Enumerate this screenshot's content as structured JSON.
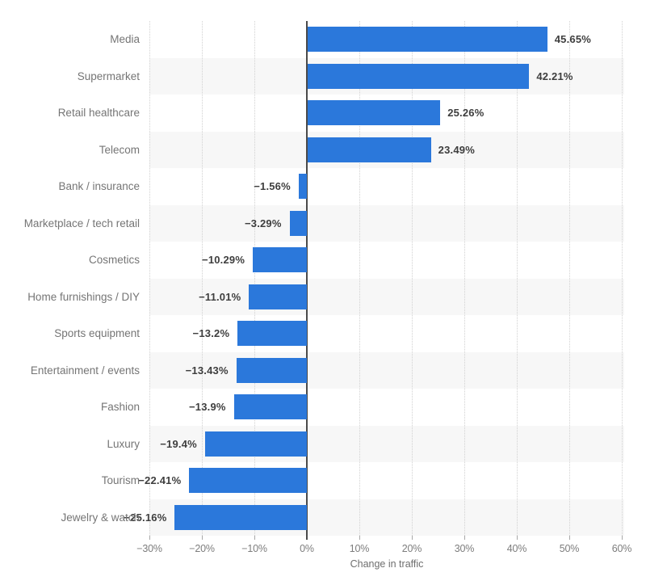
{
  "chart_data": {
    "type": "bar",
    "orientation": "horizontal",
    "title": "",
    "xlabel": "Change in traffic",
    "ylabel": "",
    "categories": [
      "Media",
      "Supermarket",
      "Retail healthcare",
      "Telecom",
      "Bank / insurance",
      "Marketplace / tech retail",
      "Cosmetics",
      "Home furnishings / DIY",
      "Sports equipment",
      "Entertainment / events",
      "Fashion",
      "Luxury",
      "Tourism",
      "Jewelry & watch"
    ],
    "values": [
      45.65,
      42.21,
      25.26,
      23.49,
      -1.56,
      -3.29,
      -10.29,
      -11.01,
      -13.2,
      -13.43,
      -13.9,
      -19.4,
      -22.41,
      -25.16
    ],
    "value_labels": [
      "45.65%",
      "42.21%",
      "25.26%",
      "23.49%",
      "−1.56%",
      "−3.29%",
      "−10.29%",
      "−11.01%",
      "−13.2%",
      "−13.43%",
      "−13.9%",
      "−19.4%",
      "−22.41%",
      "−25.16%"
    ],
    "x_tick_values": [
      -30,
      -20,
      -10,
      0,
      10,
      20,
      30,
      40,
      50,
      60
    ],
    "x_tick_labels": [
      "−30%",
      "−20%",
      "−10%",
      "0%",
      "10%",
      "20%",
      "30%",
      "40%",
      "50%",
      "60%"
    ],
    "xlim": [
      -30,
      60.5
    ],
    "grid": "vertical-dotted",
    "legend": "none",
    "colors": {
      "bar": "#2b78db",
      "row_alt_background": "#f7f7f7",
      "row_background": "#ffffff",
      "zero_axis_line": "#4a4a4a",
      "gridline": "#d1d1d1",
      "tick": "#a8a8a8",
      "category_label": "#757575",
      "value_label": "#3e3e3e",
      "axis_tick_label": "#7d7d7d",
      "axis_title": "#6e6e6e"
    }
  }
}
